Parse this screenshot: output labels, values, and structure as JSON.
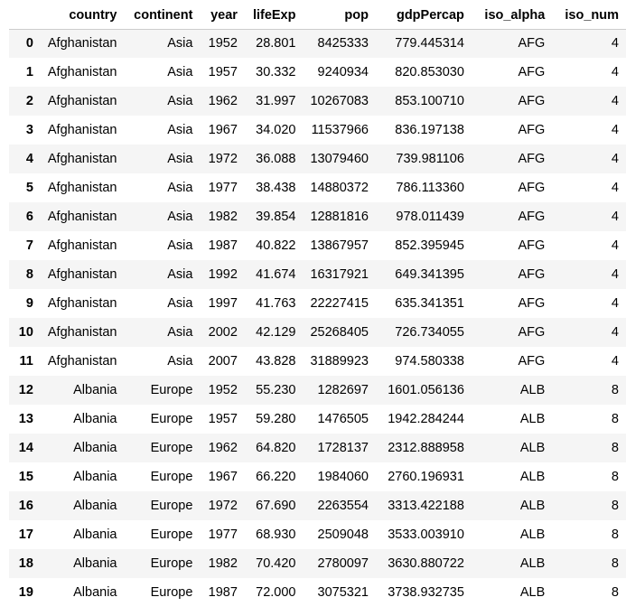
{
  "table": {
    "columns": [
      "",
      "country",
      "continent",
      "year",
      "lifeExp",
      "pop",
      "gdpPercap",
      "iso_alpha",
      "iso_num"
    ],
    "rows": [
      [
        "0",
        "Afghanistan",
        "Asia",
        "1952",
        "28.801",
        "8425333",
        "779.445314",
        "AFG",
        "4"
      ],
      [
        "1",
        "Afghanistan",
        "Asia",
        "1957",
        "30.332",
        "9240934",
        "820.853030",
        "AFG",
        "4"
      ],
      [
        "2",
        "Afghanistan",
        "Asia",
        "1962",
        "31.997",
        "10267083",
        "853.100710",
        "AFG",
        "4"
      ],
      [
        "3",
        "Afghanistan",
        "Asia",
        "1967",
        "34.020",
        "11537966",
        "836.197138",
        "AFG",
        "4"
      ],
      [
        "4",
        "Afghanistan",
        "Asia",
        "1972",
        "36.088",
        "13079460",
        "739.981106",
        "AFG",
        "4"
      ],
      [
        "5",
        "Afghanistan",
        "Asia",
        "1977",
        "38.438",
        "14880372",
        "786.113360",
        "AFG",
        "4"
      ],
      [
        "6",
        "Afghanistan",
        "Asia",
        "1982",
        "39.854",
        "12881816",
        "978.011439",
        "AFG",
        "4"
      ],
      [
        "7",
        "Afghanistan",
        "Asia",
        "1987",
        "40.822",
        "13867957",
        "852.395945",
        "AFG",
        "4"
      ],
      [
        "8",
        "Afghanistan",
        "Asia",
        "1992",
        "41.674",
        "16317921",
        "649.341395",
        "AFG",
        "4"
      ],
      [
        "9",
        "Afghanistan",
        "Asia",
        "1997",
        "41.763",
        "22227415",
        "635.341351",
        "AFG",
        "4"
      ],
      [
        "10",
        "Afghanistan",
        "Asia",
        "2002",
        "42.129",
        "25268405",
        "726.734055",
        "AFG",
        "4"
      ],
      [
        "11",
        "Afghanistan",
        "Asia",
        "2007",
        "43.828",
        "31889923",
        "974.580338",
        "AFG",
        "4"
      ],
      [
        "12",
        "Albania",
        "Europe",
        "1952",
        "55.230",
        "1282697",
        "1601.056136",
        "ALB",
        "8"
      ],
      [
        "13",
        "Albania",
        "Europe",
        "1957",
        "59.280",
        "1476505",
        "1942.284244",
        "ALB",
        "8"
      ],
      [
        "14",
        "Albania",
        "Europe",
        "1962",
        "64.820",
        "1728137",
        "2312.888958",
        "ALB",
        "8"
      ],
      [
        "15",
        "Albania",
        "Europe",
        "1967",
        "66.220",
        "1984060",
        "2760.196931",
        "ALB",
        "8"
      ],
      [
        "16",
        "Albania",
        "Europe",
        "1972",
        "67.690",
        "2263554",
        "3313.422188",
        "ALB",
        "8"
      ],
      [
        "17",
        "Albania",
        "Europe",
        "1977",
        "68.930",
        "2509048",
        "3533.003910",
        "ALB",
        "8"
      ],
      [
        "18",
        "Albania",
        "Europe",
        "1982",
        "70.420",
        "2780097",
        "3630.880722",
        "ALB",
        "8"
      ],
      [
        "19",
        "Albania",
        "Europe",
        "1987",
        "72.000",
        "3075321",
        "3738.932735",
        "ALB",
        "8"
      ]
    ]
  }
}
